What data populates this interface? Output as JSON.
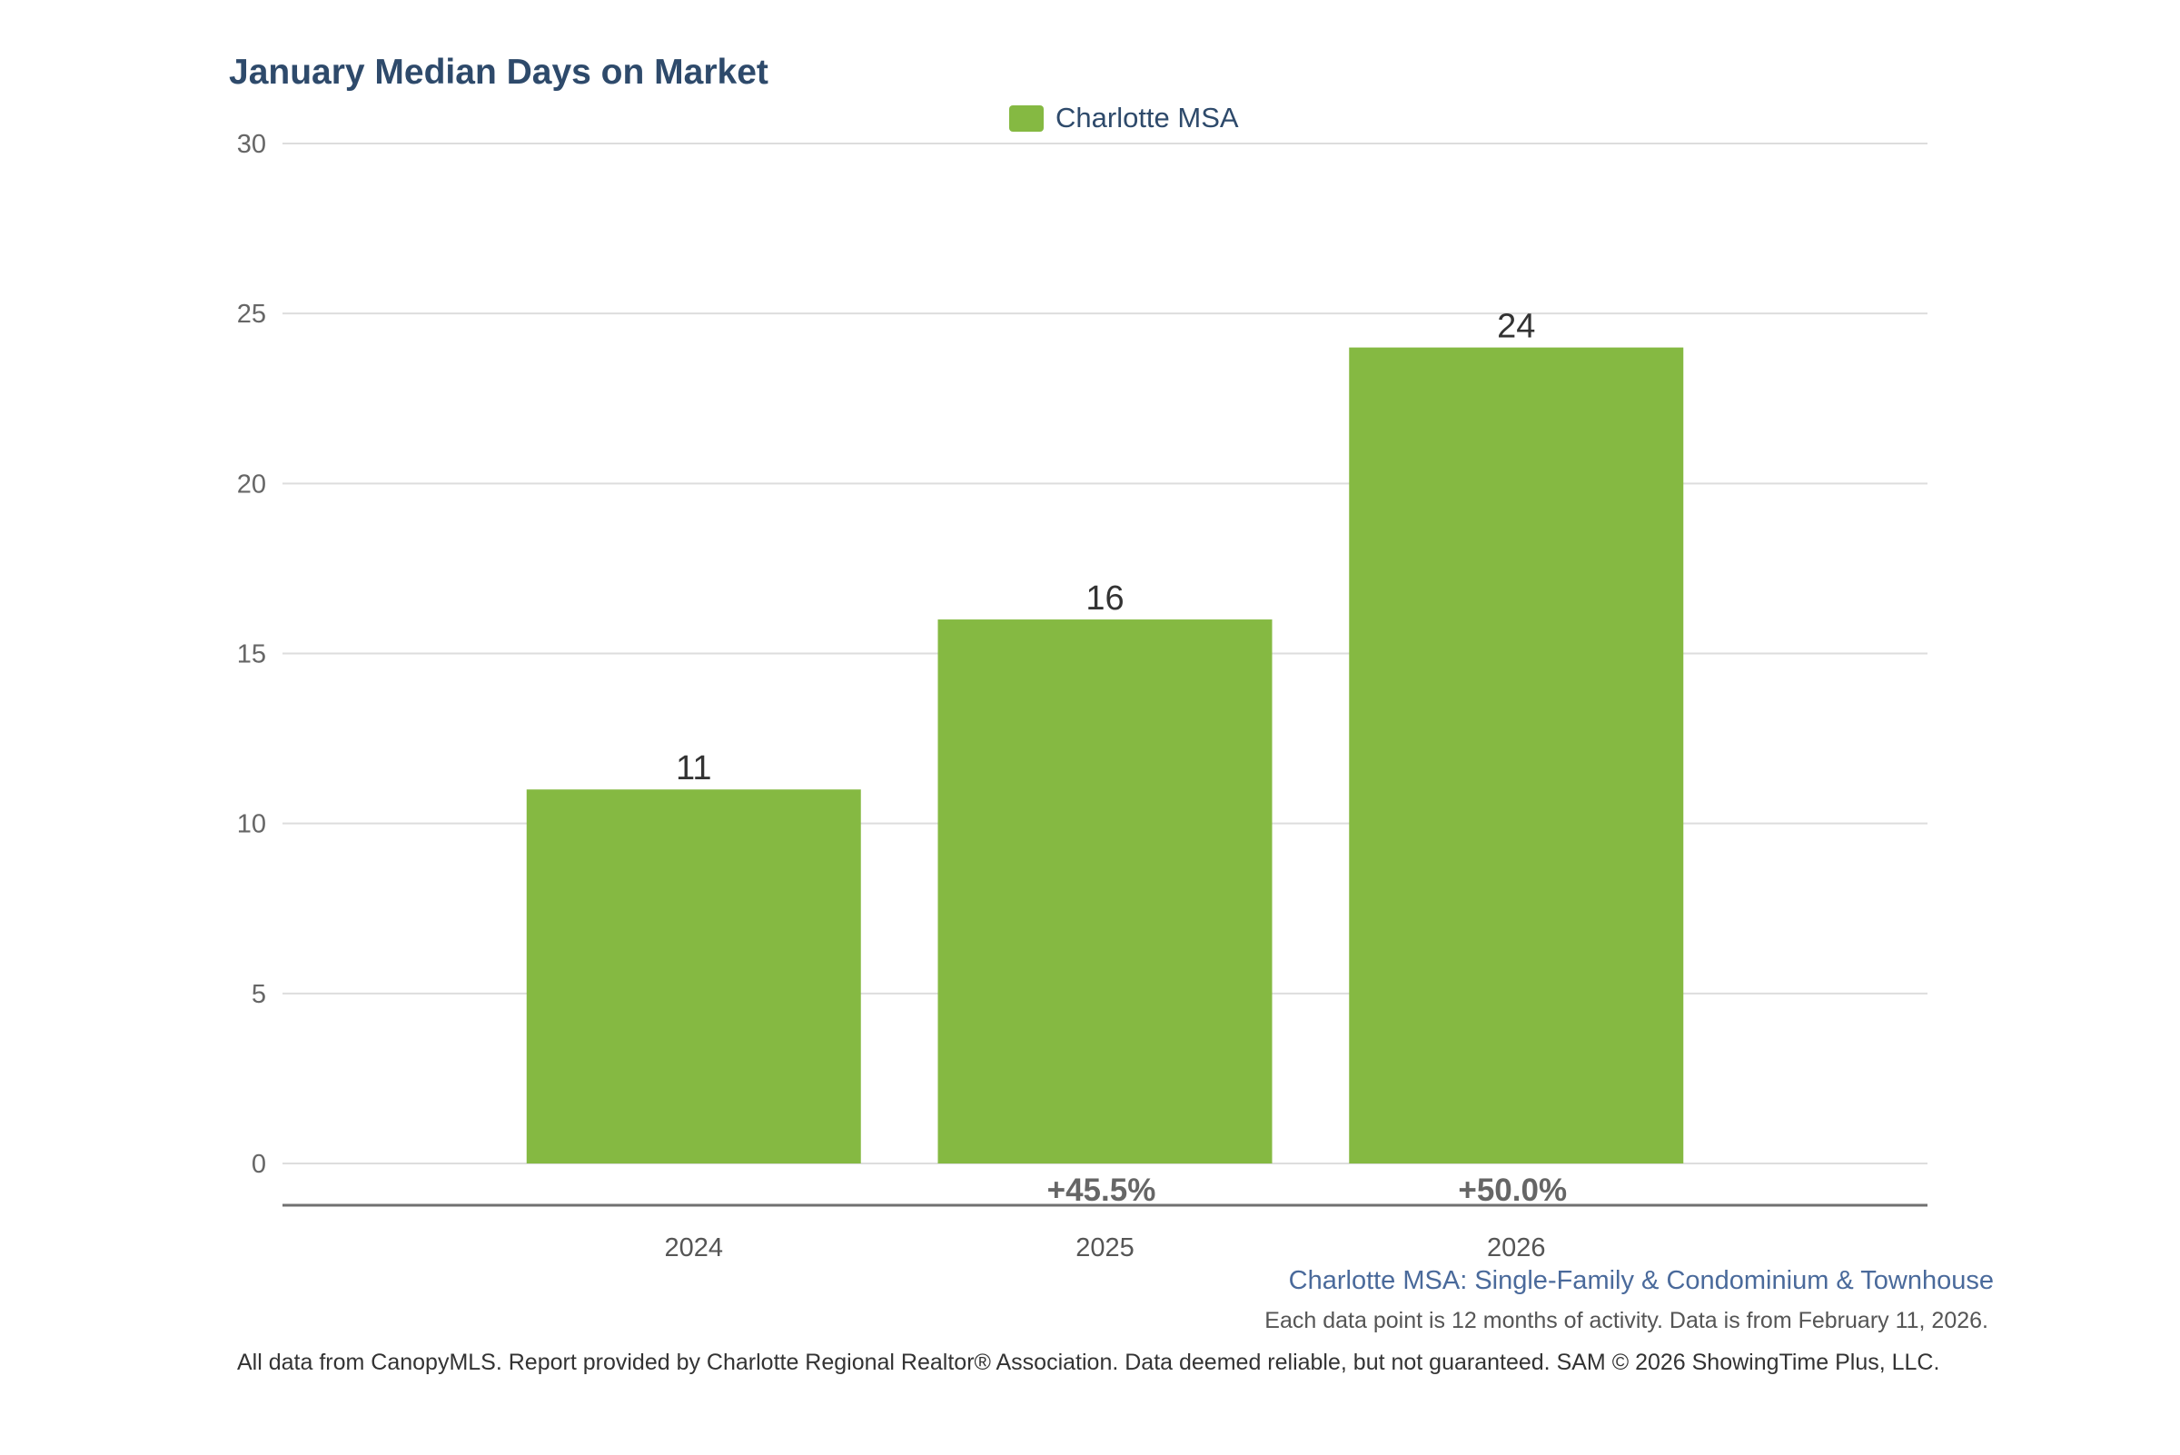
{
  "chart_data": {
    "type": "bar",
    "title": "January Median Days on Market",
    "categories": [
      "2024",
      "2025",
      "2026"
    ],
    "series": [
      {
        "name": "Charlotte MSA",
        "color": "#85b942",
        "values": [
          11,
          16,
          24
        ]
      }
    ],
    "data_labels": [
      "11",
      "16",
      "24"
    ],
    "percent_change_labels": [
      "",
      "+45.5%",
      "+50.0%"
    ],
    "xlabel": "",
    "ylabel": "",
    "ylim": [
      0,
      30
    ],
    "yticks": [
      0,
      5,
      10,
      15,
      20,
      25,
      30
    ],
    "grid": true,
    "legend_position": "top-center",
    "empty_trailing_slots": 1
  },
  "subtitle": "Charlotte MSA: Single-Family & Condominium & Townhouse",
  "note": "Each data point is 12 months of activity. Data is from February 11, 2026.",
  "footer": "All data from CanopyMLS. Report provided by Charlotte Regional Realtor® Association. Data deemed reliable, but not guaranteed. SAM © 2026 ShowingTime Plus, LLC.",
  "colors": {
    "title": "#2e4a6b",
    "bar": "#85b942",
    "grid": "#dddddd",
    "axis": "#707070",
    "subtitle": "#4a6a9b"
  }
}
